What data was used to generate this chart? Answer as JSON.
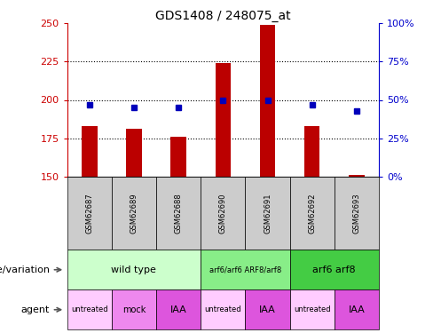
{
  "title": "GDS1408 / 248075_at",
  "samples": [
    "GSM62687",
    "GSM62689",
    "GSM62688",
    "GSM62690",
    "GSM62691",
    "GSM62692",
    "GSM62693"
  ],
  "count_values": [
    183,
    181,
    176,
    224,
    249,
    183,
    151
  ],
  "percentile_values": [
    47,
    45,
    45,
    50,
    50,
    47,
    43
  ],
  "ylim_left": [
    150,
    250
  ],
  "ylim_right": [
    0,
    100
  ],
  "yticks_left": [
    150,
    175,
    200,
    225,
    250
  ],
  "yticks_right": [
    0,
    25,
    50,
    75,
    100
  ],
  "grid_lines": [
    175,
    200,
    225
  ],
  "bar_color": "#bb0000",
  "dot_color": "#0000bb",
  "bar_width": 0.35,
  "dot_size": 5,
  "genotype_groups": [
    {
      "label": "wild type",
      "start": 0,
      "end": 3,
      "color": "#ccffcc",
      "fontsize": 8
    },
    {
      "label": "arf6/arf6 ARF8/arf8",
      "start": 3,
      "end": 5,
      "color": "#88ee88",
      "fontsize": 6
    },
    {
      "label": "arf6 arf8",
      "start": 5,
      "end": 7,
      "color": "#44cc44",
      "fontsize": 8
    }
  ],
  "agent_groups": [
    {
      "label": "untreated",
      "start": 0,
      "end": 1,
      "color": "#ffccff",
      "fontsize": 6
    },
    {
      "label": "mock",
      "start": 1,
      "end": 2,
      "color": "#ee88ee",
      "fontsize": 7
    },
    {
      "label": "IAA",
      "start": 2,
      "end": 3,
      "color": "#dd55dd",
      "fontsize": 8
    },
    {
      "label": "untreated",
      "start": 3,
      "end": 4,
      "color": "#ffccff",
      "fontsize": 6
    },
    {
      "label": "IAA",
      "start": 4,
      "end": 5,
      "color": "#dd55dd",
      "fontsize": 8
    },
    {
      "label": "untreated",
      "start": 5,
      "end": 6,
      "color": "#ffccff",
      "fontsize": 6
    },
    {
      "label": "IAA",
      "start": 6,
      "end": 7,
      "color": "#dd55dd",
      "fontsize": 8
    }
  ],
  "left_axis_color": "#cc0000",
  "right_axis_color": "#0000cc",
  "sample_bg_color": "#cccccc",
  "legend_count_color": "#bb0000",
  "legend_dot_color": "#0000bb",
  "title_fontsize": 10,
  "tick_fontsize": 8,
  "sample_fontsize": 6,
  "label_fontsize": 8
}
